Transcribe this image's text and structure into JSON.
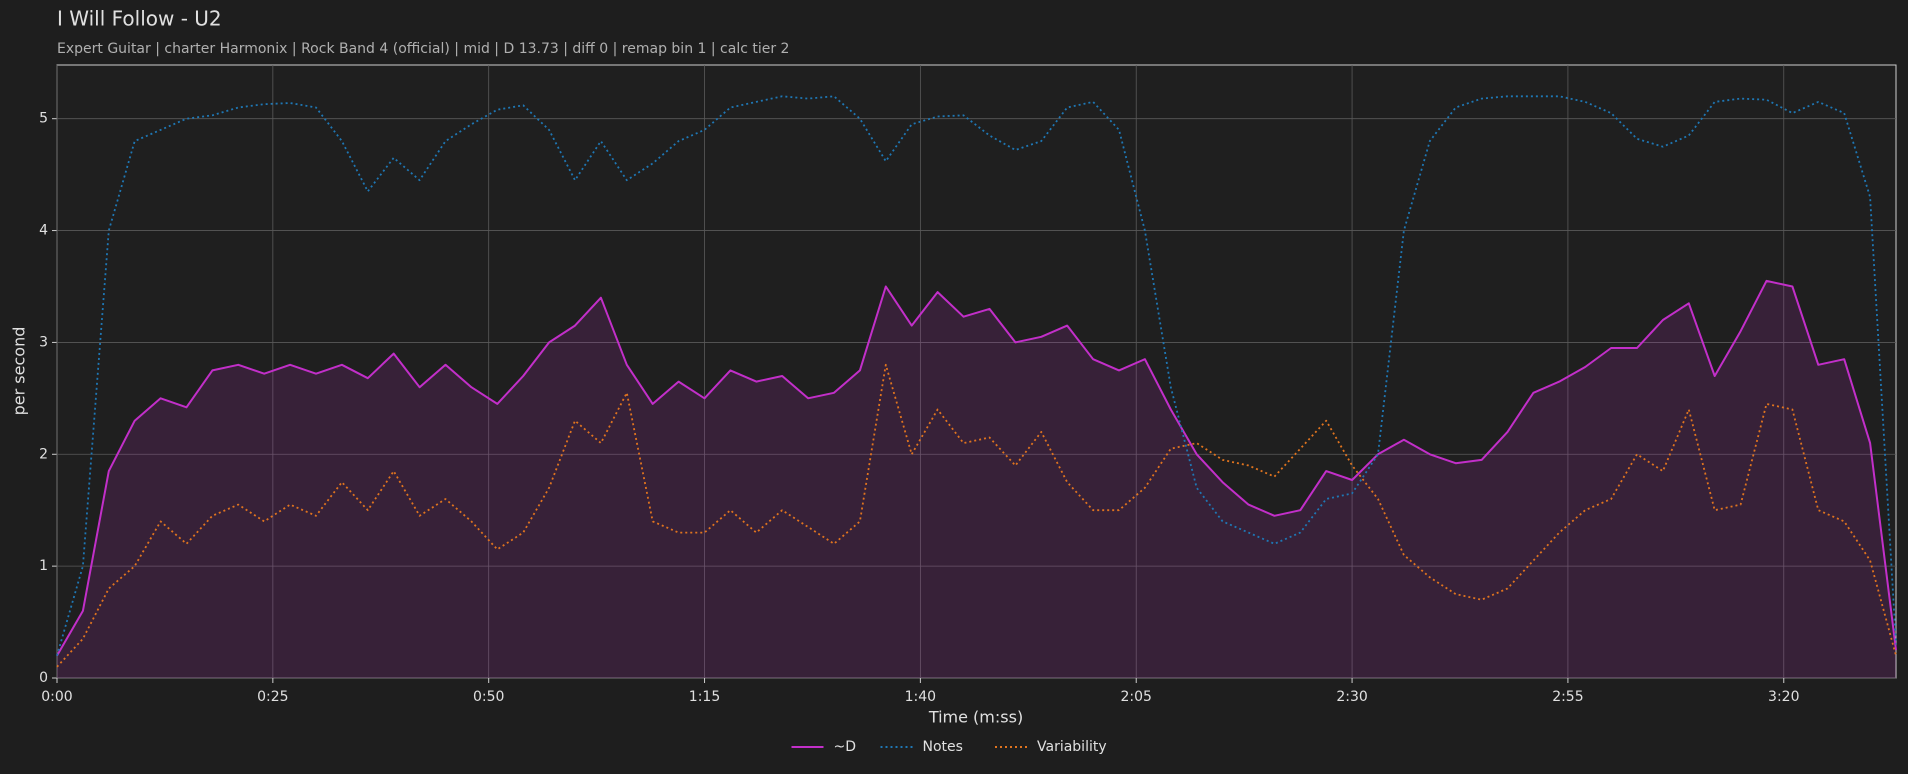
{
  "chart_data": {
    "type": "line",
    "title": "I Will Follow - U2",
    "subtitle": "Expert Guitar  |  charter Harmonix  |  Rock Band 4 (official)  |  mid  |  D 13.73  |  diff 0  |  remap bin 1  |  calc tier 2",
    "x_label": "Time (m:ss)",
    "y_label": "per second",
    "x": [
      0,
      3,
      6,
      9,
      12,
      15,
      18,
      21,
      24,
      27,
      30,
      33,
      36,
      39,
      42,
      45,
      48,
      51,
      54,
      57,
      60,
      63,
      66,
      69,
      72,
      75,
      78,
      81,
      84,
      87,
      90,
      93,
      96,
      99,
      102,
      105,
      108,
      111,
      114,
      117,
      120,
      123,
      126,
      129,
      132,
      135,
      138,
      141,
      144,
      147,
      150,
      153,
      156,
      159,
      162,
      165,
      168,
      171,
      174,
      177,
      180,
      183,
      186,
      189,
      192,
      195,
      198,
      201,
      204,
      207,
      210,
      213
    ],
    "series": [
      {
        "name": "~D",
        "color": "#c22fc9",
        "dash": "solid",
        "fill": true,
        "values": [
          0.2,
          0.6,
          1.85,
          2.3,
          2.5,
          2.42,
          2.75,
          2.8,
          2.72,
          2.8,
          2.72,
          2.8,
          2.68,
          2.9,
          2.6,
          2.8,
          2.6,
          2.45,
          2.7,
          3.0,
          3.15,
          3.4,
          2.8,
          2.45,
          2.65,
          2.5,
          2.75,
          2.65,
          2.7,
          2.5,
          2.55,
          2.75,
          3.5,
          3.15,
          3.45,
          3.23,
          3.3,
          3.0,
          3.05,
          3.15,
          2.85,
          2.75,
          2.85,
          2.4,
          2.0,
          1.75,
          1.55,
          1.45,
          1.5,
          1.85,
          1.77,
          2.0,
          2.13,
          2.0,
          1.92,
          1.95,
          2.2,
          2.55,
          2.65,
          2.78,
          2.95,
          2.95,
          3.2,
          3.35,
          2.7,
          3.1,
          3.55,
          3.5,
          2.8,
          2.85,
          2.1,
          0.25
        ]
      },
      {
        "name": "Notes",
        "color": "#1f77b4",
        "dash": "dotted",
        "fill": false,
        "values": [
          0.2,
          1.0,
          4.0,
          4.8,
          4.9,
          5.0,
          5.03,
          5.1,
          5.13,
          5.14,
          5.1,
          4.8,
          4.35,
          4.65,
          4.45,
          4.8,
          4.95,
          5.08,
          5.12,
          4.9,
          4.45,
          4.8,
          4.45,
          4.6,
          4.8,
          4.9,
          5.1,
          5.15,
          5.2,
          5.18,
          5.2,
          5.0,
          4.62,
          4.95,
          5.02,
          5.03,
          4.85,
          4.72,
          4.8,
          5.1,
          5.15,
          4.9,
          4.0,
          2.6,
          1.7,
          1.4,
          1.3,
          1.2,
          1.3,
          1.6,
          1.65,
          2.0,
          4.0,
          4.8,
          5.1,
          5.18,
          5.2,
          5.2,
          5.2,
          5.15,
          5.05,
          4.82,
          4.75,
          4.85,
          5.15,
          5.18,
          5.17,
          5.05,
          5.15,
          5.05,
          4.3,
          0.3
        ]
      },
      {
        "name": "Variability",
        "color": "#e0741f",
        "dash": "dotted",
        "fill": false,
        "values": [
          0.1,
          0.35,
          0.8,
          1.0,
          1.4,
          1.2,
          1.45,
          1.55,
          1.4,
          1.55,
          1.45,
          1.75,
          1.5,
          1.85,
          1.45,
          1.6,
          1.4,
          1.15,
          1.3,
          1.7,
          2.3,
          2.1,
          2.55,
          1.4,
          1.3,
          1.3,
          1.5,
          1.3,
          1.5,
          1.35,
          1.2,
          1.4,
          2.8,
          2.0,
          2.4,
          2.1,
          2.15,
          1.9,
          2.2,
          1.75,
          1.5,
          1.5,
          1.7,
          2.05,
          2.1,
          1.95,
          1.9,
          1.8,
          2.05,
          2.3,
          1.9,
          1.6,
          1.1,
          0.9,
          0.75,
          0.7,
          0.8,
          1.05,
          1.3,
          1.5,
          1.6,
          2.0,
          1.85,
          2.4,
          1.5,
          1.55,
          2.45,
          2.4,
          1.5,
          1.4,
          1.05,
          0.2
        ]
      }
    ],
    "xlim": [
      0,
      213
    ],
    "ylim": [
      0,
      5.48
    ],
    "xticks": [
      {
        "value": 0,
        "label": "0:00"
      },
      {
        "value": 25,
        "label": "0:25"
      },
      {
        "value": 50,
        "label": "0:50"
      },
      {
        "value": 75,
        "label": "1:15"
      },
      {
        "value": 100,
        "label": "1:40"
      },
      {
        "value": 125,
        "label": "2:05"
      },
      {
        "value": 150,
        "label": "2:30"
      },
      {
        "value": 175,
        "label": "2:55"
      },
      {
        "value": 200,
        "label": "3:20"
      }
    ],
    "yticks": [
      0,
      1,
      2,
      3,
      4,
      5
    ],
    "grid": true,
    "legend": "bottom"
  }
}
